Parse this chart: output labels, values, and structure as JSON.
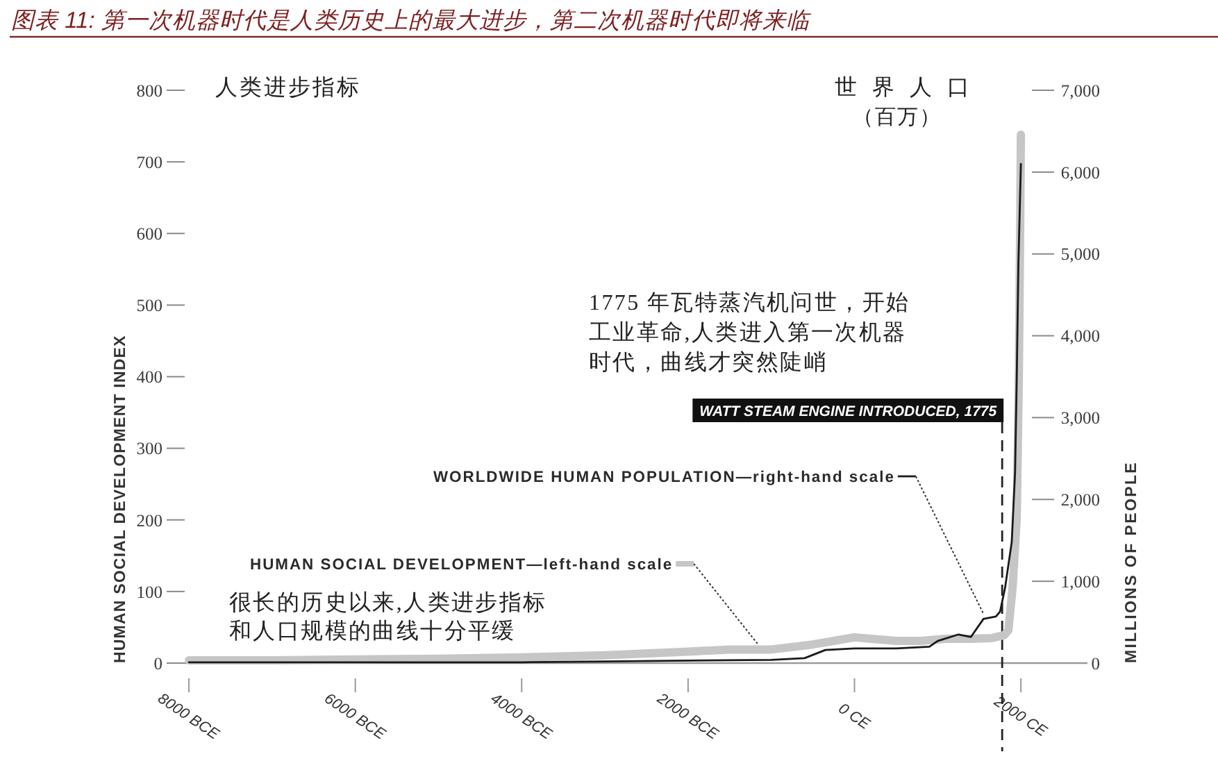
{
  "chart_data": {
    "type": "line",
    "title": "图表 11: 第一次机器时代是人类历史上的最大进步，第二次机器时代即将来临",
    "ylabel": "HUMAN SOCIAL DEVELOPMENT INDEX",
    "y2label": "MILLIONS OF PEOPLE",
    "annotations": [
      "人类进步指标",
      "世界人口",
      "（百万）",
      "1775 年瓦特蒸汽机问世，开始工业革命,人类进入第一次机器时代，曲线才突然陡峭",
      "很长的历史以来,人类进步指标和人口规模的曲线十分平缓"
    ],
    "xlim": [
      -8000,
      2800
    ],
    "xticks": [
      {
        "value": -8000,
        "label": "8000 BCE"
      },
      {
        "value": -6000,
        "label": "6000 BCE"
      },
      {
        "value": -4000,
        "label": "4000 BCE"
      },
      {
        "value": -2000,
        "label": "2000 BCE"
      },
      {
        "value": 0,
        "label": "0 CE"
      },
      {
        "value": 2000,
        "label": "2000 CE"
      }
    ],
    "ylim": [
      0,
      800
    ],
    "yticks": [
      0,
      100,
      200,
      300,
      400,
      500,
      600,
      700,
      800
    ],
    "y2lim": [
      0,
      7000
    ],
    "y2ticks": [
      0,
      {
        "value": 1000,
        "label": "1,000"
      },
      {
        "value": 2000,
        "label": "2,000"
      },
      {
        "value": 3000,
        "label": "3,000"
      },
      {
        "value": 4000,
        "label": "4,000"
      },
      {
        "value": 5000,
        "label": "5,000"
      },
      {
        "value": 6000,
        "label": "6,000"
      },
      {
        "value": 7000,
        "label": "7,000"
      }
    ],
    "legend": "bottom",
    "series": [
      {
        "name": "HUMAN SOCIAL DEVELOPMENT—left-hand scale",
        "color": "#c6c6c6",
        "x": [
          -8000,
          -7000,
          -6000,
          -5000,
          -4000,
          -3000,
          -2000,
          -1500,
          -1000,
          -500,
          -200,
          0,
          200,
          500,
          800,
          1100,
          1400,
          1650,
          1800,
          1850,
          1900,
          1950,
          1975,
          1990,
          2000
        ],
        "values": [
          4,
          4,
          5,
          6,
          8,
          11,
          16,
          19,
          19,
          26,
          32,
          36,
          34,
          31,
          31,
          34,
          34,
          35,
          39,
          46,
          105,
          202,
          396,
          590,
          738
        ]
      },
      {
        "name": "WORLDWIDE HUMAN POPULATION—right-hand scale",
        "color": "#1a1a1a",
        "axis": "y2",
        "x": [
          -8000,
          -6000,
          -4000,
          -3000,
          -2000,
          -1000,
          -600,
          -350,
          0,
          500,
          900,
          1000,
          1250,
          1400,
          1550,
          1700,
          1750,
          1810,
          1890,
          1930,
          1950,
          1970,
          2000
        ],
        "values": [
          10,
          10,
          10,
          20,
          30,
          40,
          60,
          160,
          180,
          180,
          200,
          270,
          350,
          320,
          540,
          570,
          630,
          920,
          1480,
          2330,
          3470,
          4880,
          6100
        ]
      }
    ],
    "ref_lines": [
      {
        "axis": "x",
        "value": 1775,
        "label": "WATT STEAM ENGINE INTRODUCED, 1775",
        "line_style": "dashed",
        "color": "#222222"
      }
    ]
  }
}
